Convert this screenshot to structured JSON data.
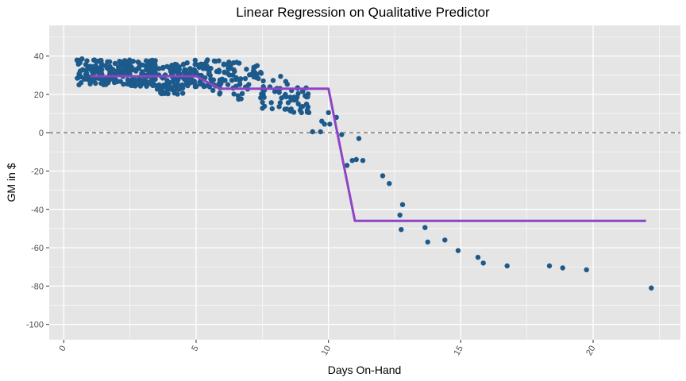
{
  "chart_data": {
    "type": "scatter",
    "title": "Linear Regression on Qualitative Predictor",
    "xlabel": "Days On-Hand",
    "ylabel": "GM in $",
    "xlim": [
      -0.55,
      23.3
    ],
    "ylim": [
      -108,
      56
    ],
    "x_ticks": [
      0,
      5,
      10,
      15,
      20
    ],
    "x_tick_labels": [
      "0",
      "5",
      "10",
      "15",
      "20"
    ],
    "y_ticks": [
      40,
      20,
      0,
      -20,
      -40,
      -60,
      -80,
      -100
    ],
    "y_tick_labels": [
      "40",
      "20",
      "0",
      "-20",
      "-40",
      "-60",
      "-80",
      "-100"
    ],
    "grid": true,
    "legend": "none",
    "colors": {
      "panel": "#e5e5e5",
      "grid": "#ffffff",
      "points": "#1c5a8c",
      "fit_line": "#8e44c4",
      "reference_line": "#666666"
    },
    "reference_line": {
      "y": 0,
      "style": "dashed"
    },
    "fit_line": {
      "x": [
        1.0,
        5.0,
        5.9,
        10.0,
        11.0,
        22.0
      ],
      "y": [
        29.5,
        29.5,
        23.0,
        23.0,
        -46.0,
        -46.0
      ]
    },
    "clusters": [
      {
        "x_range": [
          0.5,
          1.5
        ],
        "y_range": [
          25,
          39
        ],
        "count": 70
      },
      {
        "x_range": [
          1.5,
          2.5
        ],
        "y_range": [
          25,
          38
        ],
        "count": 65
      },
      {
        "x_range": [
          2.5,
          3.5
        ],
        "y_range": [
          24,
          38
        ],
        "count": 80
      },
      {
        "x_range": [
          3.5,
          4.5
        ],
        "y_range": [
          20,
          36
        ],
        "count": 80
      },
      {
        "x_range": [
          4.5,
          5.5
        ],
        "y_range": [
          24,
          38
        ],
        "count": 60
      },
      {
        "x_range": [
          5.5,
          6.5
        ],
        "y_range": [
          20,
          38
        ],
        "count": 45
      },
      {
        "x_range": [
          6.5,
          7.5
        ],
        "y_range": [
          17,
          38
        ],
        "count": 35
      },
      {
        "x_range": [
          7.5,
          8.5
        ],
        "y_range": [
          12,
          30
        ],
        "count": 30
      },
      {
        "x_range": [
          8.5,
          9.3
        ],
        "y_range": [
          10,
          24
        ],
        "count": 30
      }
    ],
    "points": [
      [
        9.4,
        0.5
      ],
      [
        9.7,
        0.5
      ],
      [
        9.75,
        6
      ],
      [
        9.85,
        4.5
      ],
      [
        10.0,
        10.5
      ],
      [
        10.05,
        4.5
      ],
      [
        10.3,
        8
      ],
      [
        10.5,
        -1
      ],
      [
        10.7,
        -17
      ],
      [
        10.9,
        -14.5
      ],
      [
        11.05,
        -14
      ],
      [
        11.15,
        -3
      ],
      [
        11.3,
        -14.5
      ],
      [
        12.05,
        -22.5
      ],
      [
        12.3,
        -26.5
      ],
      [
        12.7,
        -43
      ],
      [
        12.75,
        -50.5
      ],
      [
        12.8,
        -37.5
      ],
      [
        13.65,
        -49.5
      ],
      [
        13.75,
        -57
      ],
      [
        14.4,
        -56
      ],
      [
        14.9,
        -61.5
      ],
      [
        15.65,
        -65
      ],
      [
        15.85,
        -68
      ],
      [
        16.75,
        -69.5
      ],
      [
        18.35,
        -69.5
      ],
      [
        18.85,
        -70.5
      ],
      [
        19.75,
        -71.5
      ],
      [
        22.2,
        -81
      ]
    ]
  }
}
